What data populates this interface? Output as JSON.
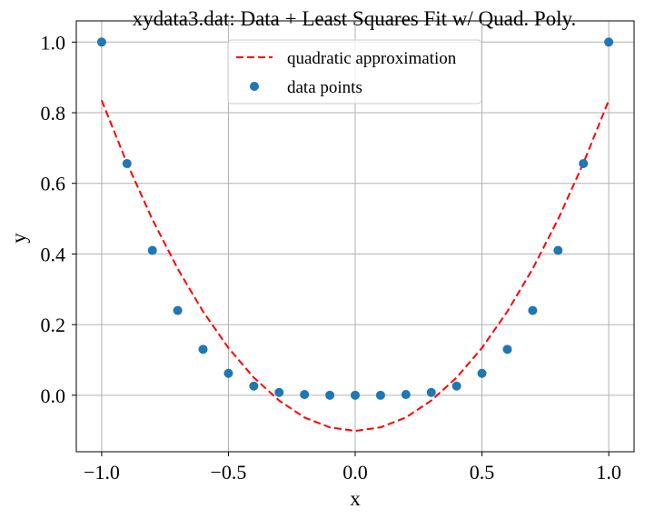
{
  "chart_data": {
    "type": "scatter",
    "title": "xydata3.dat: Data + Least Squares Fit w/ Quad. Poly.",
    "xlabel": "x",
    "ylabel": "y",
    "xlim": [
      -1.1,
      1.1
    ],
    "ylim": [
      -0.16,
      1.06
    ],
    "grid": true,
    "legend_position": "top-center",
    "x_ticks": [
      -1.0,
      -0.5,
      0.0,
      0.5,
      1.0
    ],
    "x_tick_labels": [
      "−1.0",
      "−0.5",
      "0.0",
      "0.5",
      "1.0"
    ],
    "y_ticks": [
      0.0,
      0.2,
      0.4,
      0.6,
      0.8,
      1.0
    ],
    "y_tick_labels": [
      "0.0",
      "0.2",
      "0.4",
      "0.6",
      "0.8",
      "1.0"
    ],
    "series": [
      {
        "name": "quadratic approximation",
        "kind": "line",
        "style": "dashed",
        "color": "#ff0000",
        "x": [
          -1.0,
          -0.9,
          -0.8,
          -0.7,
          -0.6,
          -0.5,
          -0.4,
          -0.3,
          -0.2,
          -0.1,
          0.0,
          0.1,
          0.2,
          0.3,
          0.4,
          0.5,
          0.6,
          0.7,
          0.8,
          0.9,
          1.0
        ],
        "y": [
          0.835,
          0.657,
          0.498,
          0.358,
          0.237,
          0.134,
          0.05,
          -0.015,
          -0.063,
          -0.091,
          -0.101,
          -0.091,
          -0.063,
          -0.015,
          0.05,
          0.134,
          0.237,
          0.358,
          0.498,
          0.657,
          0.835
        ]
      },
      {
        "name": "data points",
        "kind": "scatter",
        "color": "#1f77b4",
        "x": [
          -1.0,
          -0.9,
          -0.8,
          -0.7,
          -0.6,
          -0.5,
          -0.4,
          -0.3,
          -0.2,
          -0.1,
          0.0,
          0.1,
          0.2,
          0.3,
          0.4,
          0.5,
          0.6,
          0.7,
          0.8,
          0.9,
          1.0
        ],
        "y": [
          1.0,
          0.656,
          0.41,
          0.24,
          0.13,
          0.062,
          0.026,
          0.008,
          0.002,
          0.0,
          0.0,
          0.0,
          0.002,
          0.008,
          0.026,
          0.062,
          0.13,
          0.24,
          0.41,
          0.656,
          1.0
        ]
      }
    ]
  }
}
